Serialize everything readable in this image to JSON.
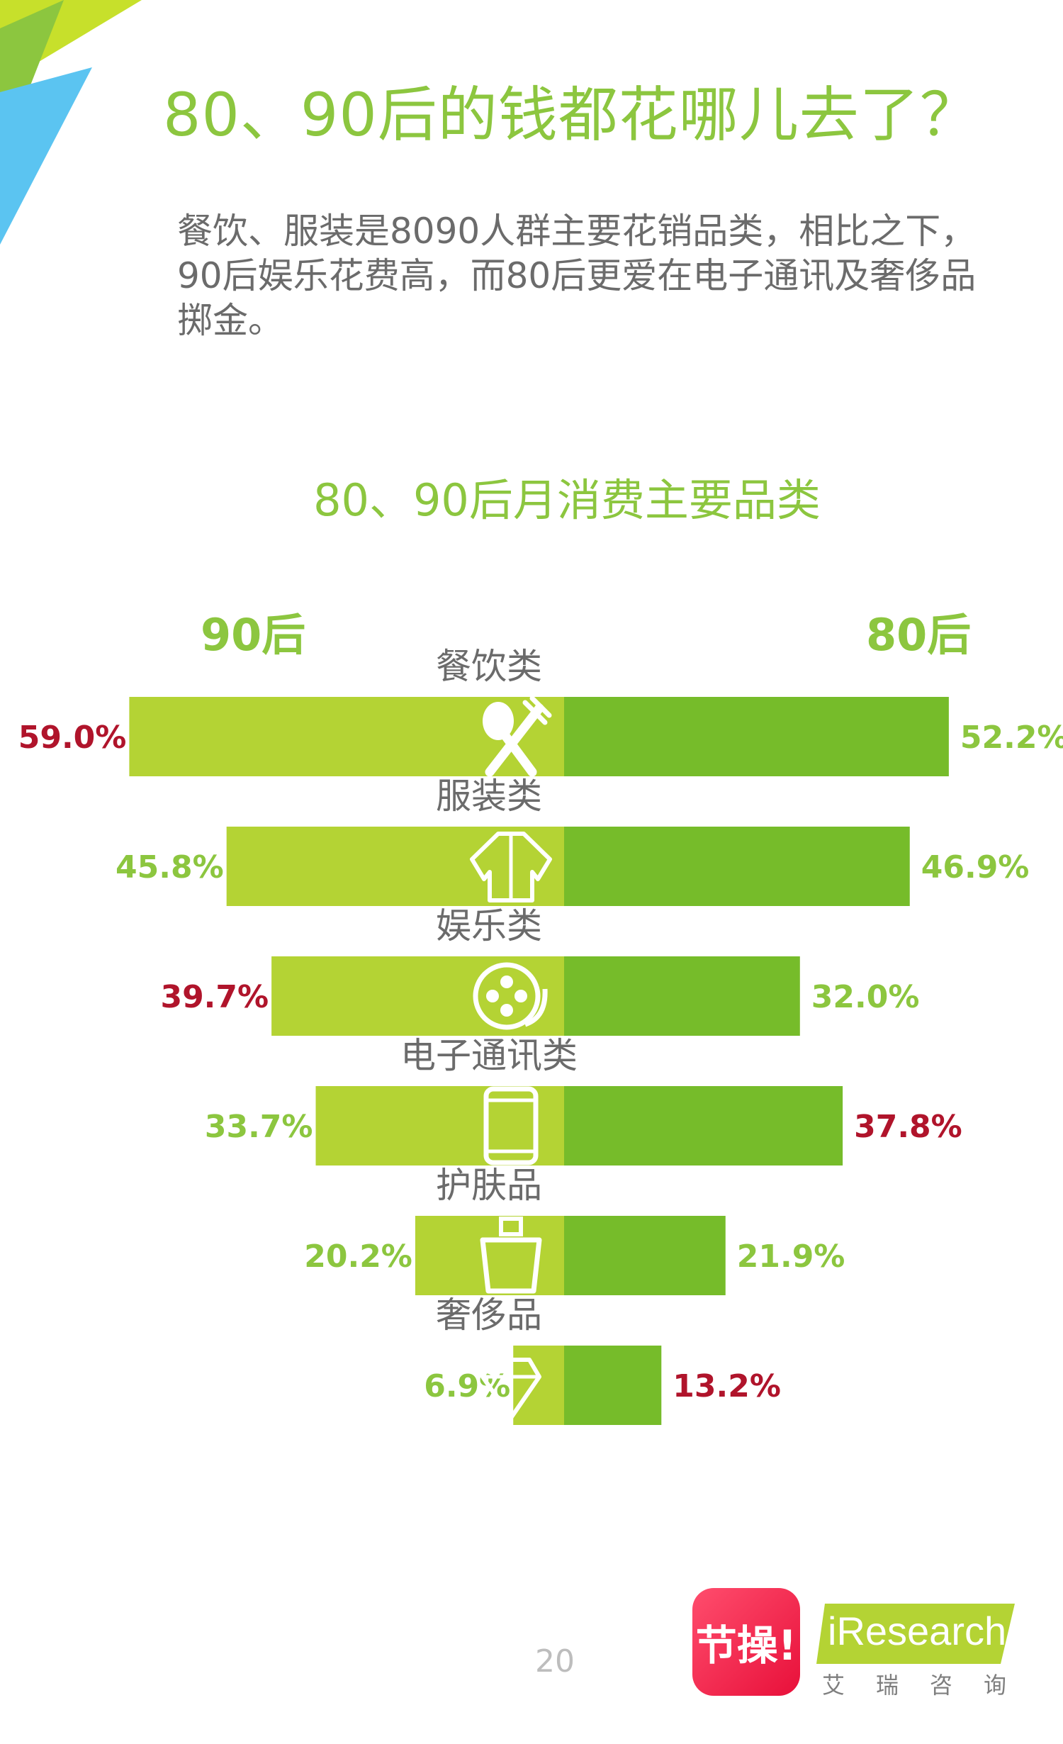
{
  "page": {
    "title": "80、90后的钱都花哪儿去了？",
    "subtitle": "餐饮、服装是8090人群主要花销品类，相比之下，90后娱乐花费高，而80后更爱在电子通讯及奢侈品掷金。",
    "page_number": "20",
    "logo_jiecao": "节操!",
    "logo_iresearch": "iResearch",
    "logo_iresearch_sub": "艾瑞咨询"
  },
  "colors": {
    "left_bar": "#b4d334",
    "right_bar": "#76bc2a",
    "label_green": "#8cc63f",
    "highlight_red": "#b0142b",
    "category_text": "#6b6b6b"
  },
  "chart_data": {
    "type": "bar",
    "title": "80、90后月消费主要品类",
    "series": [
      {
        "name": "90后",
        "values": [
          59.0,
          45.8,
          39.7,
          33.7,
          20.2,
          6.9
        ]
      },
      {
        "name": "80后",
        "values": [
          52.2,
          46.9,
          32.0,
          37.8,
          21.9,
          13.2
        ]
      }
    ],
    "categories": [
      "餐饮类",
      "服装类",
      "娱乐类",
      "电子通讯类",
      "护肤品",
      "奢侈品"
    ],
    "labels_90": [
      "59.0%",
      "45.8%",
      "39.7%",
      "33.7%",
      "20.2%",
      "6.9%"
    ],
    "labels_80": [
      "52.2%",
      "46.9%",
      "32.0%",
      "37.8%",
      "21.9%",
      "13.2%"
    ],
    "highlight_90": [
      true,
      false,
      true,
      false,
      false,
      false
    ],
    "highlight_80": [
      false,
      false,
      false,
      true,
      false,
      true
    ],
    "icons": [
      "utensils-icon",
      "jacket-icon",
      "film-reel-icon",
      "phone-icon",
      "skincare-bottle-icon",
      "diamond-icon"
    ]
  }
}
